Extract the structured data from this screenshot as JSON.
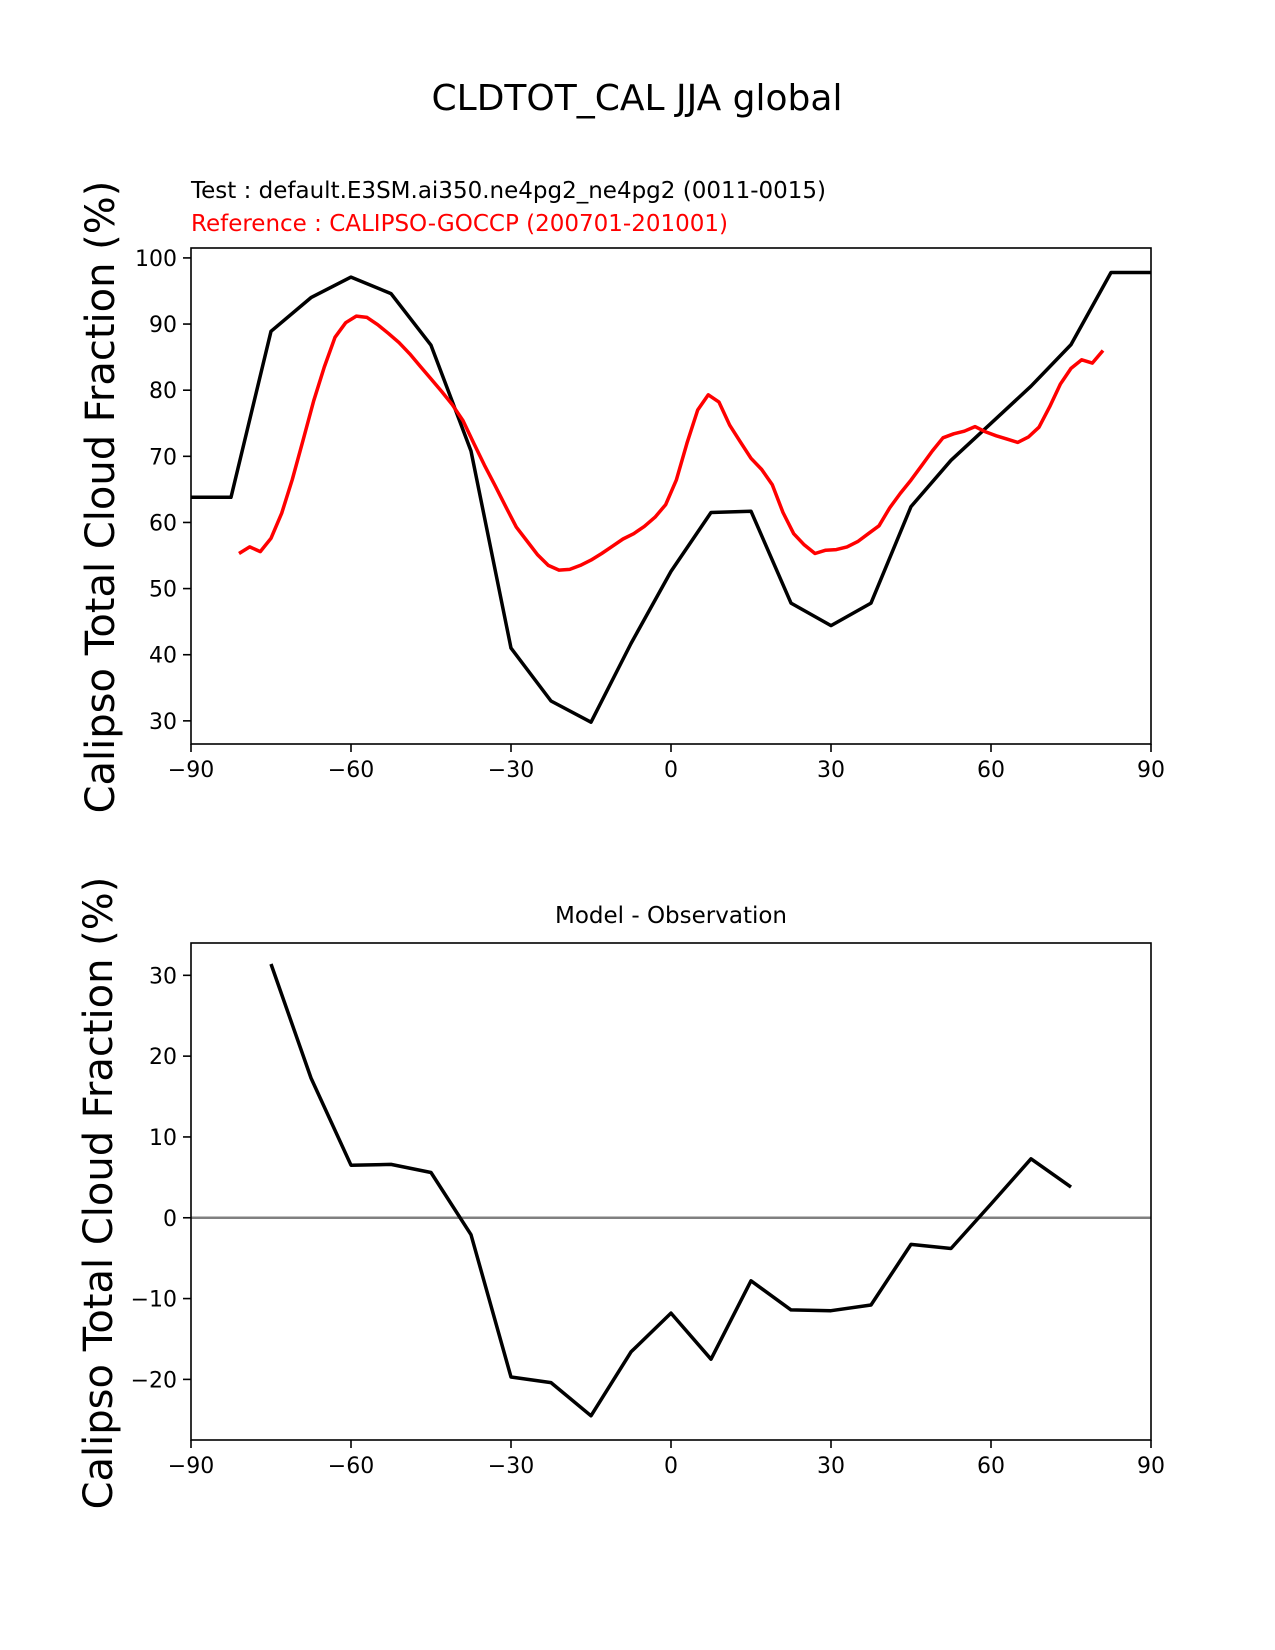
{
  "figure": {
    "title": "CLDTOT_CAL JJA global"
  },
  "chart_data": [
    {
      "type": "line",
      "title_test": "Test : default.E3SM.ai350.ne4pg2_ne4pg2 (0011-0015)",
      "title_reference": "Reference : CALIPSO-GOCCP (200701-201001)",
      "xlabel": "",
      "ylabel": "Calipso Total Cloud Fraction (%)",
      "xlim": [
        -90,
        90
      ],
      "ylim": [
        26.5,
        101.5
      ],
      "xticks": [
        -90,
        -60,
        -30,
        0,
        30,
        60,
        90
      ],
      "xtick_labels": [
        "−90",
        "−60",
        "−30",
        "0",
        "30",
        "60",
        "90"
      ],
      "yticks": [
        30,
        40,
        50,
        60,
        70,
        80,
        90,
        100
      ],
      "ytick_labels": [
        "30",
        "40",
        "50",
        "60",
        "70",
        "80",
        "90",
        "100"
      ],
      "grid": false,
      "series": [
        {
          "color": "#000000",
          "x": [
            -90,
            -82.5,
            -75,
            -67.5,
            -60,
            -52.5,
            -45,
            -37.5,
            -30,
            -22.5,
            -15,
            -7.5,
            0,
            7.5,
            15,
            22.5,
            30,
            37.5,
            45,
            52.5,
            60,
            67.5,
            75,
            82.5,
            90
          ],
          "y": [
            63.8,
            63.8,
            88.9,
            94.0,
            97.1,
            94.6,
            86.8,
            70.8,
            41.0,
            33.0,
            29.8,
            41.7,
            52.6,
            61.5,
            61.7,
            47.8,
            44.4,
            47.8,
            62.4,
            69.4,
            75.0,
            80.6,
            86.9,
            97.8,
            97.8
          ]
        },
        {
          "color": "#ff0000",
          "x": [
            -81,
            -79,
            -77,
            -75,
            -73,
            -71,
            -69,
            -67,
            -65,
            -63,
            -61,
            -59,
            -57,
            -55,
            -53,
            -51,
            -49,
            -47,
            -45,
            -43,
            -41,
            -39,
            -37,
            -35,
            -33,
            -31,
            -29,
            -27,
            -25,
            -23,
            -21,
            -19,
            -17,
            -15,
            -13,
            -11,
            -9,
            -7,
            -5,
            -3,
            -1,
            1,
            3,
            5,
            7,
            9,
            11,
            13,
            15,
            17,
            19,
            21,
            23,
            25,
            27,
            29,
            31,
            33,
            35,
            37,
            39,
            41,
            43,
            45,
            47,
            49,
            51,
            53,
            55,
            57,
            59,
            61,
            63,
            65,
            67,
            69,
            71,
            73,
            75,
            77,
            79,
            81
          ],
          "y": [
            55.3,
            56.3,
            55.6,
            57.6,
            61.4,
            66.5,
            72.4,
            78.4,
            83.5,
            88.0,
            90.2,
            91.2,
            91.0,
            89.9,
            88.6,
            87.2,
            85.5,
            83.6,
            81.7,
            79.8,
            77.8,
            75.4,
            72.0,
            68.7,
            65.6,
            62.4,
            59.3,
            57.2,
            55.1,
            53.5,
            52.8,
            52.9,
            53.5,
            54.3,
            55.3,
            56.4,
            57.5,
            58.3,
            59.4,
            60.8,
            62.7,
            66.4,
            72.0,
            77.0,
            79.3,
            78.2,
            74.7,
            72.2,
            69.7,
            68.0,
            65.7,
            61.5,
            58.3,
            56.6,
            55.3,
            55.8,
            55.9,
            56.3,
            57.1,
            58.3,
            59.5,
            62.2,
            64.4,
            66.4,
            68.6,
            70.8,
            72.8,
            73.4,
            73.8,
            74.5,
            73.7,
            73.1,
            72.6,
            72.1,
            72.9,
            74.4,
            77.5,
            80.9,
            83.3,
            84.6,
            84.1,
            86.0
          ]
        }
      ]
    },
    {
      "type": "line",
      "title": "Model - Observation",
      "xlabel": "",
      "ylabel": "Calipso Total Cloud Fraction (%)",
      "xlim": [
        -90,
        90
      ],
      "ylim": [
        -27.5,
        34.0
      ],
      "xticks": [
        -90,
        -60,
        -30,
        0,
        30,
        60,
        90
      ],
      "xtick_labels": [
        "−90",
        "−60",
        "−30",
        "0",
        "30",
        "60",
        "90"
      ],
      "yticks": [
        -20,
        -10,
        0,
        10,
        20,
        30
      ],
      "ytick_labels": [
        "−20",
        "−10",
        "0",
        "10",
        "20",
        "30"
      ],
      "grid": false,
      "zero_line": {
        "y": 0,
        "color": "#808080"
      },
      "series": [
        {
          "color": "#000000",
          "x": [
            -75,
            -67.5,
            -60,
            -52.5,
            -45,
            -37.5,
            -30,
            -22.5,
            -15,
            -7.5,
            0,
            7.5,
            15,
            22.5,
            30,
            37.5,
            45,
            52.5,
            60,
            67.5,
            75
          ],
          "y": [
            31.4,
            17.3,
            6.5,
            6.6,
            5.6,
            -2.1,
            -19.7,
            -20.4,
            -24.5,
            -16.6,
            -11.8,
            -17.5,
            -7.8,
            -11.4,
            -11.5,
            -10.8,
            -3.3,
            -3.8,
            1.7,
            7.3,
            3.8
          ]
        }
      ]
    }
  ]
}
